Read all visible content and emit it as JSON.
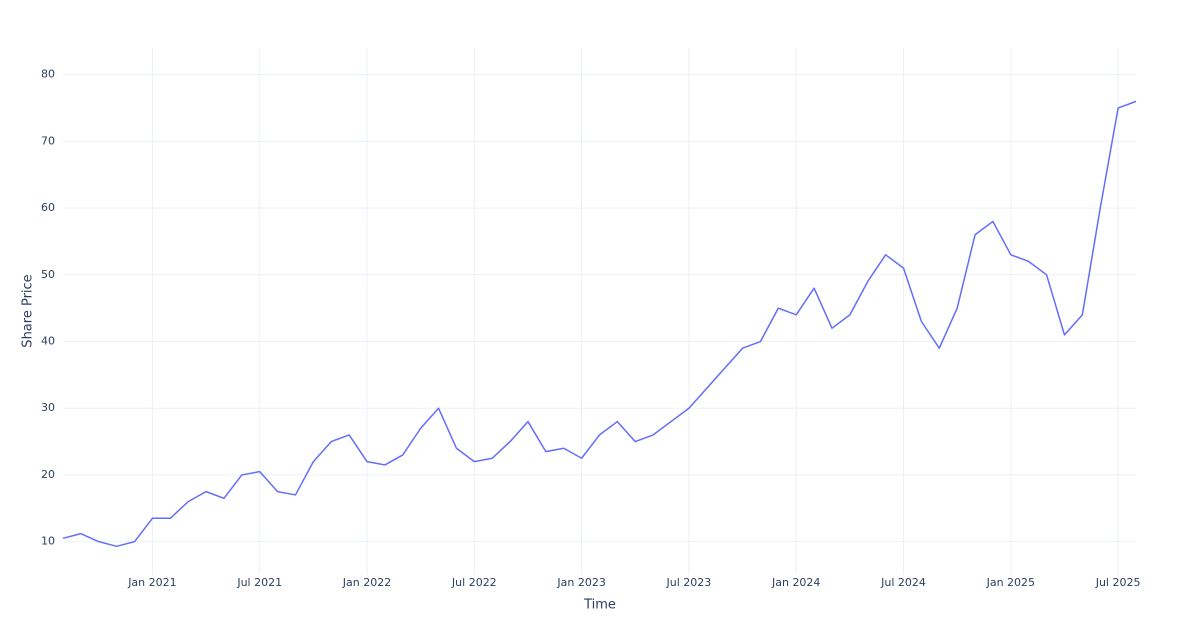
{
  "chart_data": {
    "type": "line",
    "x_label": "Time",
    "y_label": "Share Price",
    "x": [
      "2020-08",
      "2020-09",
      "2020-10",
      "2020-11",
      "2020-12",
      "2021-01",
      "2021-02",
      "2021-03",
      "2021-04",
      "2021-05",
      "2021-06",
      "2021-07",
      "2021-08",
      "2021-09",
      "2021-10",
      "2021-11",
      "2021-12",
      "2022-01",
      "2022-02",
      "2022-03",
      "2022-04",
      "2022-05",
      "2022-06",
      "2022-07",
      "2022-08",
      "2022-09",
      "2022-10",
      "2022-11",
      "2022-12",
      "2023-01",
      "2023-02",
      "2023-03",
      "2023-04",
      "2023-05",
      "2023-06",
      "2023-07",
      "2023-08",
      "2023-09",
      "2023-10",
      "2023-11",
      "2023-12",
      "2024-01",
      "2024-02",
      "2024-03",
      "2024-04",
      "2024-05",
      "2024-06",
      "2024-07",
      "2024-08",
      "2024-09",
      "2024-10",
      "2024-11",
      "2024-12",
      "2025-01",
      "2025-02",
      "2025-03",
      "2025-04",
      "2025-05",
      "2025-06",
      "2025-07",
      "2025-08"
    ],
    "values": [
      10.5,
      11.2,
      10,
      9.3,
      10,
      13.5,
      13.5,
      16,
      17.5,
      16.5,
      20,
      20.5,
      17.5,
      17,
      22,
      25,
      26,
      22,
      21.5,
      23,
      27,
      30,
      24,
      22,
      22.5,
      25,
      28,
      23.5,
      24,
      22.5,
      26,
      28,
      25,
      26,
      28,
      30,
      33,
      36,
      39,
      40,
      45,
      44,
      48,
      42,
      44,
      49,
      53,
      51,
      43,
      39,
      45,
      56,
      58,
      53,
      52,
      50,
      41,
      44,
      60,
      75,
      76
    ],
    "color": "#636efa",
    "xlim": [
      "2020-08",
      "2025-08"
    ],
    "xticks": [
      {
        "value": "2021-01",
        "label": "Jan 2021"
      },
      {
        "value": "2021-07",
        "label": "Jul 2021"
      },
      {
        "value": "2022-01",
        "label": "Jan 2022"
      },
      {
        "value": "2022-07",
        "label": "Jul 2022"
      },
      {
        "value": "2023-01",
        "label": "Jan 2023"
      },
      {
        "value": "2023-07",
        "label": "Jul 2023"
      },
      {
        "value": "2024-01",
        "label": "Jan 2024"
      },
      {
        "value": "2024-07",
        "label": "Jul 2024"
      },
      {
        "value": "2025-01",
        "label": "Jan 2025"
      },
      {
        "value": "2025-07",
        "label": "Jul 2025"
      }
    ],
    "ylim": [
      5,
      84
    ],
    "yticks": [
      10,
      20,
      30,
      40,
      50,
      60,
      70,
      80
    ],
    "grid": true
  }
}
